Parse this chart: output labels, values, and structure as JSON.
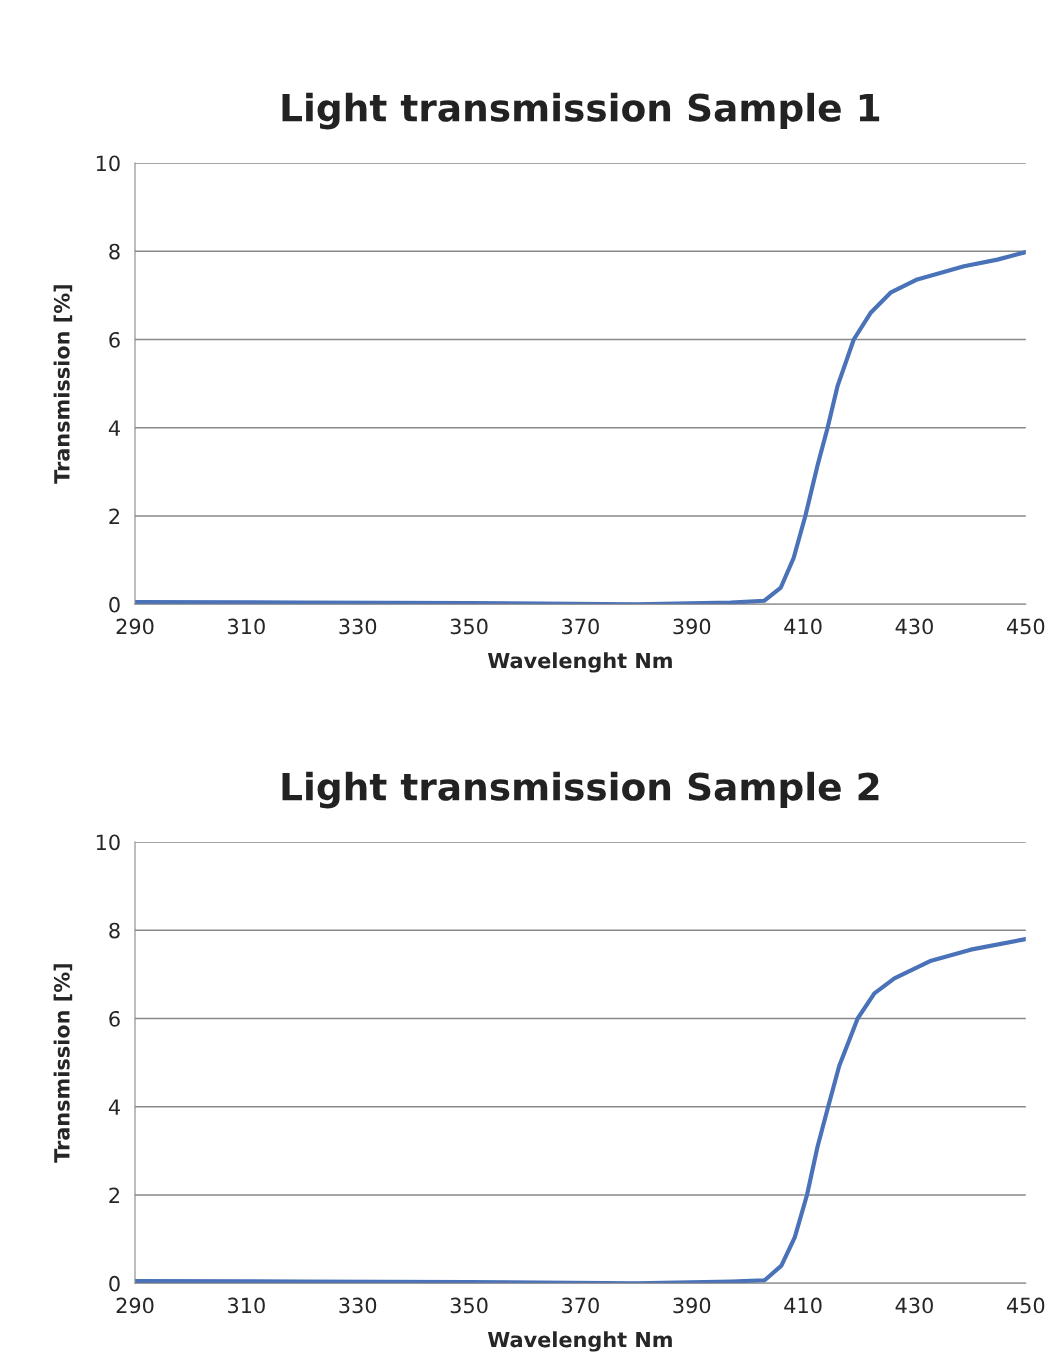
{
  "chart_data": [
    {
      "type": "line",
      "title": "Light transmission Sample 1",
      "xlabel": "Wavelenght Nm",
      "ylabel": "Transmission [%]",
      "xlim": [
        290,
        450
      ],
      "xticks": [
        290,
        310,
        330,
        350,
        370,
        390,
        410,
        430,
        450
      ],
      "ylim": [
        0,
        10
      ],
      "yticks": [
        0,
        2,
        4,
        6,
        8,
        10
      ],
      "grid": "y",
      "series": [
        {
          "color": "#4a72b8",
          "x": [
            290,
            320,
            350,
            380,
            397,
            403,
            406,
            408.3,
            410.4,
            412.6,
            414.4,
            416.2,
            419.1,
            422.1,
            425.7,
            430.5,
            438.9,
            444.9,
            450
          ],
          "values": [
            0.05,
            0.04,
            0.03,
            0.0,
            0.04,
            0.08,
            0.38,
            1.05,
            2.0,
            3.15,
            4.0,
            4.95,
            6.0,
            6.6,
            7.06,
            7.36,
            7.66,
            7.81,
            7.98
          ]
        }
      ]
    },
    {
      "type": "line",
      "title": "Light transmission Sample 2",
      "xlabel": "Wavelenght Nm",
      "ylabel": "Transmission [%]",
      "xlim": [
        290,
        450
      ],
      "xticks": [
        290,
        310,
        330,
        350,
        370,
        390,
        410,
        430,
        450
      ],
      "ylim": [
        0,
        10
      ],
      "yticks": [
        0,
        2,
        4,
        6,
        8,
        10
      ],
      "grid": "y",
      "series": [
        {
          "color": "#4a72b8",
          "x": [
            290,
            320,
            350,
            380,
            397.1,
            403.1,
            406.1,
            408.5,
            410.7,
            412.6,
            414.5,
            416.5,
            419.8,
            422.8,
            426.4,
            433,
            440.1,
            450
          ],
          "values": [
            0.05,
            0.04,
            0.03,
            0.0,
            0.04,
            0.07,
            0.4,
            1.04,
            2.0,
            3.1,
            4.0,
            4.93,
            6.0,
            6.57,
            6.91,
            7.31,
            7.56,
            7.8
          ]
        }
      ]
    }
  ]
}
